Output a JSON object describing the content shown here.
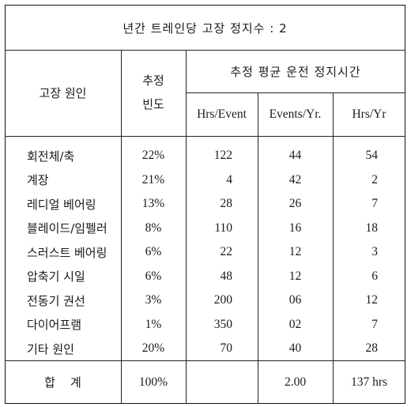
{
  "title": "년간 트레인당 고장 정지수 : 2",
  "headers": {
    "cause": "고장 원인",
    "freq_line1": "추정",
    "freq_line2": "빈도",
    "avg_group": "추정 평균 운전 정지시간",
    "col_hrs_event": "Hrs/Event",
    "col_events_yr": "Events/Yr.",
    "col_hrs_yr": "Hrs/Yr"
  },
  "rows": [
    {
      "cause": "회전체/축",
      "freq": "22%",
      "hrs_event": "122",
      "events_yr": "44",
      "hrs_yr": "54"
    },
    {
      "cause": "계장",
      "freq": "21%",
      "hrs_event": "4",
      "events_yr": "42",
      "hrs_yr": "2"
    },
    {
      "cause": "레디얼 베어링",
      "freq": "13%",
      "hrs_event": "28",
      "events_yr": "26",
      "hrs_yr": "7"
    },
    {
      "cause": "블레이드/임펠러",
      "freq": "8%",
      "hrs_event": "110",
      "events_yr": "16",
      "hrs_yr": "18"
    },
    {
      "cause": "스러스트 베어링",
      "freq": "6%",
      "hrs_event": "22",
      "events_yr": "12",
      "hrs_yr": "3"
    },
    {
      "cause": "압축기 시일",
      "freq": "6%",
      "hrs_event": "48",
      "events_yr": "12",
      "hrs_yr": "6"
    },
    {
      "cause": "전동기 권선",
      "freq": "3%",
      "hrs_event": "200",
      "events_yr": "06",
      "hrs_yr": "12"
    },
    {
      "cause": "다이어프램",
      "freq": "1%",
      "hrs_event": "350",
      "events_yr": "02",
      "hrs_yr": "7"
    },
    {
      "cause": "기타 원인",
      "freq": "20%",
      "hrs_event": "70",
      "events_yr": "40",
      "hrs_yr": "28"
    }
  ],
  "total": {
    "label": "합    계",
    "freq": "100%",
    "hrs_event": "",
    "events_yr": "2.00",
    "hrs_yr": "137 hrs"
  }
}
